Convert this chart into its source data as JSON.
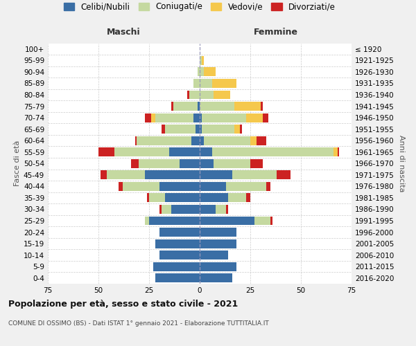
{
  "age_groups": [
    "100+",
    "95-99",
    "90-94",
    "85-89",
    "80-84",
    "75-79",
    "70-74",
    "65-69",
    "60-64",
    "55-59",
    "50-54",
    "45-49",
    "40-44",
    "35-39",
    "30-34",
    "25-29",
    "20-24",
    "15-19",
    "10-14",
    "5-9",
    "0-4"
  ],
  "birth_years": [
    "≤ 1920",
    "1921-1925",
    "1926-1930",
    "1931-1935",
    "1936-1940",
    "1941-1945",
    "1946-1950",
    "1951-1955",
    "1956-1960",
    "1961-1965",
    "1966-1970",
    "1971-1975",
    "1976-1980",
    "1981-1985",
    "1986-1990",
    "1991-1995",
    "1996-2000",
    "2001-2005",
    "2006-2010",
    "2011-2015",
    "2016-2020"
  ],
  "males": {
    "celibi": [
      0,
      0,
      0,
      0,
      0,
      1,
      3,
      2,
      4,
      15,
      10,
      27,
      20,
      17,
      14,
      25,
      20,
      22,
      20,
      23,
      22
    ],
    "coniugati": [
      0,
      0,
      1,
      3,
      5,
      12,
      19,
      15,
      27,
      27,
      20,
      19,
      18,
      8,
      5,
      2,
      0,
      0,
      0,
      0,
      0
    ],
    "vedovi": [
      0,
      0,
      0,
      0,
      0,
      0,
      2,
      0,
      0,
      0,
      0,
      0,
      0,
      0,
      0,
      0,
      0,
      0,
      0,
      0,
      0
    ],
    "divorziati": [
      0,
      0,
      0,
      0,
      1,
      1,
      3,
      2,
      1,
      8,
      4,
      3,
      2,
      1,
      1,
      0,
      0,
      0,
      0,
      0,
      0
    ]
  },
  "females": {
    "nubili": [
      0,
      0,
      0,
      0,
      0,
      0,
      1,
      1,
      2,
      6,
      7,
      16,
      13,
      14,
      8,
      27,
      18,
      18,
      14,
      18,
      16
    ],
    "coniugate": [
      0,
      1,
      2,
      6,
      7,
      17,
      22,
      16,
      23,
      60,
      18,
      22,
      20,
      9,
      5,
      8,
      0,
      0,
      0,
      0,
      0
    ],
    "vedove": [
      0,
      1,
      6,
      12,
      8,
      13,
      8,
      3,
      3,
      2,
      0,
      0,
      0,
      0,
      0,
      0,
      0,
      0,
      0,
      0,
      0
    ],
    "divorziate": [
      0,
      0,
      0,
      0,
      0,
      1,
      3,
      1,
      5,
      1,
      6,
      7,
      2,
      2,
      1,
      1,
      0,
      0,
      0,
      0,
      0
    ]
  },
  "colors": {
    "celibi_nubili": "#3a6ea5",
    "coniugati": "#c5d9a0",
    "vedovi": "#f5c84c",
    "divorziati": "#cc2222"
  },
  "xlim": 75,
  "title": "Popolazione per età, sesso e stato civile - 2021",
  "subtitle": "COMUNE DI OSSIMO (BS) - Dati ISTAT 1° gennaio 2021 - Elaborazione TUTTITALIA.IT",
  "xlabel_left": "Maschi",
  "xlabel_right": "Femmine",
  "ylabel": "Fasce di età",
  "ylabel_right": "Anni di nascita",
  "bg_color": "#f0f0f0",
  "plot_bg_color": "#ffffff"
}
